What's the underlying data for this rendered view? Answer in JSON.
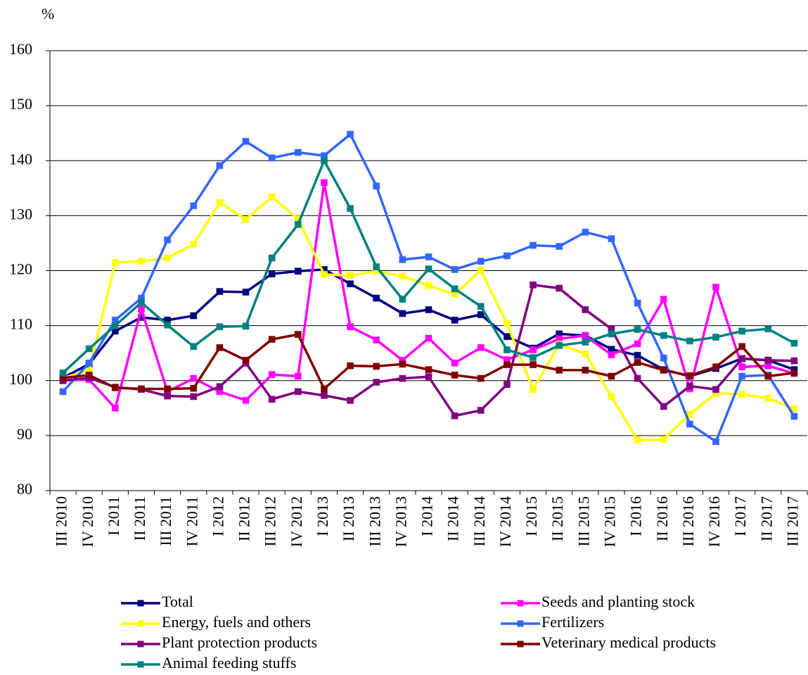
{
  "chart_data": {
    "type": "line",
    "y_label": "%",
    "categories": [
      "III 2010",
      "IV 2010",
      "I 2011",
      "II 2011",
      "III 2011",
      "IV 2011",
      "I 2012",
      "II 2012",
      "III 2012",
      "IV 2012",
      "I 2013",
      "II 2013",
      "III 2013",
      "IV 2013",
      "I 2014",
      "II 2014",
      "III 2014",
      "IV 2014",
      "I 2015",
      "II 2015",
      "III 2015",
      "IV 2015",
      "I 2016",
      "II 2016",
      "III 2016",
      "IV 2016",
      "I 2017",
      "II 2017",
      "III 2017"
    ],
    "ylim": [
      80,
      160
    ],
    "yticks": [
      80,
      90,
      100,
      110,
      120,
      130,
      140,
      150,
      160
    ],
    "grid": true,
    "series": [
      {
        "name": "Total",
        "color": "#000080",
        "values": [
          100.5,
          103,
          109,
          111.5,
          111,
          111.8,
          116.2,
          116.1,
          119.4,
          119.9,
          120.2,
          117.6,
          115,
          112.2,
          112.9,
          111,
          112,
          108,
          105.9,
          108.5,
          108.2,
          105.7,
          104.6,
          102,
          100.8,
          102.2,
          104,
          103.7,
          102
        ]
      },
      {
        "name": "Seeds and planting stock",
        "color": "#FF00FF",
        "values": [
          100,
          100.2,
          95,
          113,
          98,
          100.4,
          98,
          96.4,
          101.1,
          100.8,
          136,
          109.8,
          107.4,
          103.7,
          107.7,
          103.2,
          106,
          103.8,
          105.6,
          107.6,
          108.2,
          104.7,
          106.7,
          114.8,
          98.5,
          117,
          102.5,
          102.7,
          101.3
        ]
      },
      {
        "name": "Energy, fuels and others",
        "color": "#FFFF00",
        "values": [
          100.5,
          101.8,
          121.5,
          121.7,
          122.3,
          124.8,
          132.4,
          129.3,
          133.4,
          129.4,
          119.3,
          119.1,
          119.9,
          119,
          117.3,
          115.7,
          120.1,
          110.4,
          98.4,
          106.6,
          104.9,
          97.1,
          89.2,
          89.3,
          93.9,
          97.7,
          97.5,
          96.8,
          94.9
        ]
      },
      {
        "name": "Fertilizers",
        "color": "#3366FF",
        "values": [
          98,
          103.2,
          111,
          115,
          125.6,
          131.8,
          139.1,
          143.5,
          140.5,
          141.5,
          140.9,
          144.8,
          135.4,
          122,
          122.5,
          120.2,
          121.7,
          122.7,
          124.6,
          124.4,
          127,
          125.8,
          114.1,
          104.1,
          92.1,
          88.9,
          100.8,
          101,
          93.5
        ]
      },
      {
        "name": "Plant protection products",
        "color": "#800080",
        "values": [
          100,
          100.5,
          98.8,
          98.4,
          97.2,
          97.1,
          98.9,
          103.2,
          96.6,
          98,
          97.3,
          96.4,
          99.7,
          100.4,
          100.7,
          93.6,
          94.6,
          99.3,
          117.4,
          116.8,
          112.9,
          109.4,
          100.4,
          95.3,
          99,
          98.4,
          104,
          103.7,
          103.6
        ]
      },
      {
        "name": "Veterinary medical products",
        "color": "#800000",
        "values": [
          100.5,
          101,
          98.7,
          98.5,
          98.5,
          98.6,
          106,
          103.7,
          107.5,
          108.4,
          98.5,
          102.7,
          102.6,
          103,
          102,
          101,
          100.4,
          102.9,
          102.9,
          101.9,
          101.9,
          100.8,
          103.3,
          101.9,
          100.9,
          102.5,
          106.2,
          100.8,
          101.4
        ]
      },
      {
        "name": "Animal feeding stuffs",
        "color": "#008080",
        "values": [
          101.4,
          105.8,
          110,
          114.2,
          110.1,
          106.2,
          109.8,
          109.9,
          122.3,
          128.4,
          140,
          131.3,
          120.7,
          114.8,
          120.3,
          116.7,
          113.5,
          105.6,
          104.2,
          106.4,
          107,
          108.5,
          109.3,
          108.2,
          107.2,
          107.9,
          109,
          109.4,
          106.8
        ]
      }
    ]
  }
}
